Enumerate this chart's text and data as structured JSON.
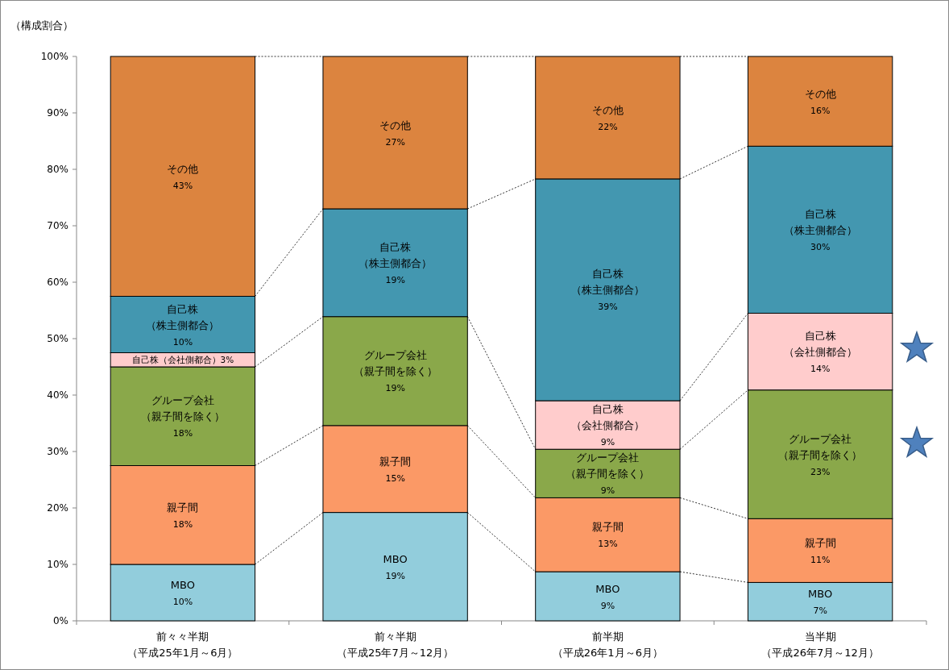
{
  "chart_data": {
    "type": "bar",
    "stacked": true,
    "ylabel": "（構成割合）",
    "categories": [
      "前々々半期（平成25年1月～6月）",
      "前々半期（平成25年7月～12月）",
      "前半期（平成26年1月～6月）",
      "当半期（平成26年7月～12月）"
    ],
    "ylim": [
      0,
      100
    ],
    "yticks": [
      {
        "value": 0,
        "label": "0%"
      },
      {
        "value": 10,
        "label": "10%"
      },
      {
        "value": 20,
        "label": "20%"
      },
      {
        "value": 30,
        "label": "30%"
      },
      {
        "value": 40,
        "label": "40%"
      },
      {
        "value": 50,
        "label": "50%"
      },
      {
        "value": 60,
        "label": "60%"
      },
      {
        "value": 70,
        "label": "70%"
      },
      {
        "value": 80,
        "label": "80%"
      },
      {
        "value": 90,
        "label": "90%"
      },
      {
        "value": 100,
        "label": "100%"
      }
    ],
    "series": [
      {
        "name": "MBO",
        "color": "#92cddc",
        "values": [
          10,
          19.2,
          8.7,
          6.8
        ],
        "value_labels": [
          "10%",
          "19%",
          "9%",
          "7%"
        ]
      },
      {
        "name": "親子間",
        "color": "#fb9966",
        "values": [
          17.5,
          15.4,
          13.1,
          11.3
        ],
        "value_labels": [
          "18%",
          "15%",
          "13%",
          "11%"
        ]
      },
      {
        "name": "グループ会社（親子間を除く）",
        "color": "#8aa84a",
        "values": [
          17.5,
          19.3,
          8.6,
          22.8
        ],
        "value_labels": [
          "18%",
          "19%",
          "9%",
          "23%"
        ]
      },
      {
        "name": "自己株（会社側都合）",
        "color": "#ffcccc",
        "values": [
          2.5,
          null,
          8.6,
          13.6
        ],
        "value_labels": [
          "3%",
          null,
          "9%",
          "14%"
        ]
      },
      {
        "name": "自己株（株主側都合）",
        "color": "#4397b0",
        "values": [
          10,
          19.1,
          39.3,
          29.6
        ],
        "value_labels": [
          "10%",
          "19%",
          "39%",
          "30%"
        ]
      },
      {
        "name": "その他",
        "color": "#dc843f",
        "values": [
          42.5,
          27,
          21.7,
          15.9
        ],
        "value_labels": [
          "43%",
          "27%",
          "22%",
          "16%"
        ]
      }
    ]
  }
}
